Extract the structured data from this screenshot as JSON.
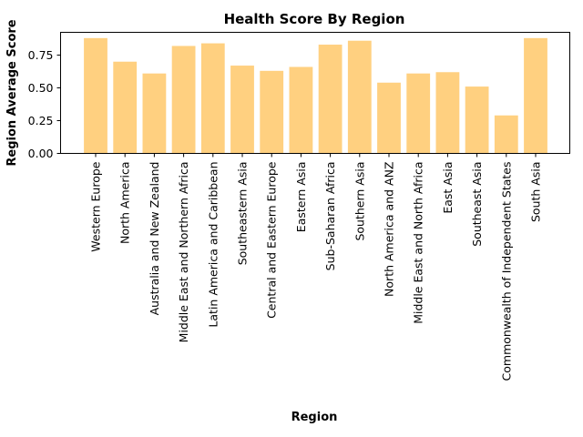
{
  "chart_data": {
    "type": "bar",
    "title": "Health Score By Region",
    "xlabel": "Region",
    "ylabel": "Region Average Score",
    "categories": [
      "Western Europe",
      "North America",
      "Australia and New Zealand",
      "Middle East and Northern Africa",
      "Latin America and Caribbean",
      "Southeastern Asia",
      "Central and Eastern Europe",
      "Eastern Asia",
      "Sub-Saharan Africa",
      "Southern Asia",
      "North America and ANZ",
      "Middle East and North Africa",
      "East Asia",
      "Southeast Asia",
      "Commonwealth of Independent States",
      "South Asia"
    ],
    "values": [
      0.88,
      0.7,
      0.61,
      0.82,
      0.84,
      0.67,
      0.63,
      0.66,
      0.83,
      0.86,
      0.54,
      0.61,
      0.62,
      0.51,
      0.29,
      0.88
    ],
    "ylim": [
      0,
      0.924
    ],
    "yticks": [
      0.0,
      0.25,
      0.5,
      0.75
    ],
    "ytick_labels": [
      "0.00",
      "0.25",
      "0.50",
      "0.75"
    ],
    "bar_color": "#ffd080",
    "grid": false
  }
}
